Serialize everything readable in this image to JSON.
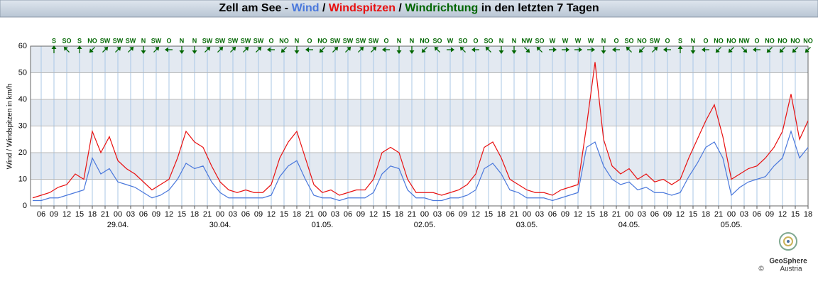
{
  "chart_data": {
    "type": "line",
    "title_prefix": "Zell am See -",
    "title_suffix": "in den letzten 7 Tagen",
    "direction_name": "Windrichtung",
    "direction_color": "#006600",
    "ylabel": "Wind / Windspitzen in km/h",
    "ylim": [
      0,
      60
    ],
    "yticks": [
      0,
      10,
      20,
      30,
      40,
      50,
      60
    ],
    "xlim": [
      3.5,
      186
    ],
    "xticks": [
      {
        "value": 6,
        "label": "06"
      },
      {
        "value": 9,
        "label": "09"
      },
      {
        "value": 12,
        "label": "12"
      },
      {
        "value": 15,
        "label": "15"
      },
      {
        "value": 18,
        "label": "18"
      },
      {
        "value": 21,
        "label": "21"
      },
      {
        "value": 24,
        "label": "00"
      },
      {
        "value": 27,
        "label": "03"
      },
      {
        "value": 30,
        "label": "06"
      },
      {
        "value": 33,
        "label": "09"
      },
      {
        "value": 36,
        "label": "12"
      },
      {
        "value": 39,
        "label": "15"
      },
      {
        "value": 42,
        "label": "18"
      },
      {
        "value": 45,
        "label": "21"
      },
      {
        "value": 48,
        "label": "00"
      },
      {
        "value": 51,
        "label": "03"
      },
      {
        "value": 54,
        "label": "06"
      },
      {
        "value": 57,
        "label": "09"
      },
      {
        "value": 60,
        "label": "12"
      },
      {
        "value": 63,
        "label": "15"
      },
      {
        "value": 66,
        "label": "18"
      },
      {
        "value": 69,
        "label": "21"
      },
      {
        "value": 72,
        "label": "00"
      },
      {
        "value": 75,
        "label": "03"
      },
      {
        "value": 78,
        "label": "06"
      },
      {
        "value": 81,
        "label": "09"
      },
      {
        "value": 84,
        "label": "12"
      },
      {
        "value": 87,
        "label": "15"
      },
      {
        "value": 90,
        "label": "18"
      },
      {
        "value": 93,
        "label": "21"
      },
      {
        "value": 96,
        "label": "00"
      },
      {
        "value": 99,
        "label": "03"
      },
      {
        "value": 102,
        "label": "06"
      },
      {
        "value": 105,
        "label": "09"
      },
      {
        "value": 108,
        "label": "12"
      },
      {
        "value": 111,
        "label": "15"
      },
      {
        "value": 114,
        "label": "18"
      },
      {
        "value": 117,
        "label": "21"
      },
      {
        "value": 120,
        "label": "00"
      },
      {
        "value": 123,
        "label": "03"
      },
      {
        "value": 126,
        "label": "06"
      },
      {
        "value": 129,
        "label": "09"
      },
      {
        "value": 132,
        "label": "12"
      },
      {
        "value": 135,
        "label": "15"
      },
      {
        "value": 138,
        "label": "18"
      },
      {
        "value": 141,
        "label": "21"
      },
      {
        "value": 144,
        "label": "00"
      },
      {
        "value": 147,
        "label": "03"
      },
      {
        "value": 150,
        "label": "06"
      },
      {
        "value": 153,
        "label": "09"
      },
      {
        "value": 156,
        "label": "12"
      },
      {
        "value": 159,
        "label": "15"
      },
      {
        "value": 162,
        "label": "18"
      },
      {
        "value": 165,
        "label": "21"
      },
      {
        "value": 168,
        "label": "00"
      },
      {
        "value": 171,
        "label": "03"
      },
      {
        "value": 174,
        "label": "06"
      },
      {
        "value": 177,
        "label": "09"
      },
      {
        "value": 180,
        "label": "12"
      },
      {
        "value": 183,
        "label": "15"
      },
      {
        "value": 186,
        "label": "18"
      }
    ],
    "day_labels": [
      {
        "value": 24,
        "label": "29.04."
      },
      {
        "value": 48,
        "label": "30.04."
      },
      {
        "value": 72,
        "label": "01.05."
      },
      {
        "value": 96,
        "label": "02.05."
      },
      {
        "value": 120,
        "label": "03.05."
      },
      {
        "value": 144,
        "label": "04.05."
      },
      {
        "value": 168,
        "label": "05.05."
      }
    ],
    "x": [
      4,
      6,
      8,
      10,
      12,
      14,
      16,
      18,
      20,
      22,
      24,
      26,
      28,
      30,
      32,
      34,
      36,
      38,
      40,
      42,
      44,
      46,
      48,
      50,
      52,
      54,
      56,
      58,
      60,
      62,
      64,
      66,
      68,
      70,
      72,
      74,
      76,
      78,
      80,
      82,
      84,
      86,
      88,
      90,
      92,
      94,
      96,
      98,
      100,
      102,
      104,
      106,
      108,
      110,
      112,
      114,
      116,
      118,
      120,
      122,
      124,
      126,
      128,
      130,
      132,
      134,
      136,
      138,
      140,
      142,
      144,
      146,
      148,
      150,
      152,
      154,
      156,
      158,
      160,
      162,
      164,
      166,
      168,
      170,
      172,
      174,
      176,
      178,
      180,
      182,
      184,
      186
    ],
    "series": [
      {
        "name": "Wind",
        "color": "#4a78dc",
        "values": [
          2,
          2,
          3,
          3,
          4,
          5,
          6,
          18,
          12,
          14,
          9,
          8,
          7,
          5,
          3,
          4,
          6,
          10,
          16,
          14,
          15,
          9,
          5,
          3,
          3,
          3,
          3,
          3,
          4,
          11,
          15,
          17,
          10,
          4,
          3,
          3,
          2,
          3,
          3,
          3,
          5,
          12,
          15,
          14,
          6,
          3,
          3,
          2,
          2,
          3,
          3,
          4,
          6,
          14,
          16,
          12,
          6,
          5,
          3,
          3,
          3,
          2,
          3,
          4,
          5,
          22,
          24,
          15,
          10,
          8,
          9,
          6,
          7,
          5,
          5,
          4,
          5,
          11,
          16,
          22,
          24,
          18,
          4,
          7,
          9,
          10,
          11,
          15,
          18,
          28,
          18,
          22
        ]
      },
      {
        "name": "Windspitzen",
        "color": "#e81010",
        "values": [
          3,
          4,
          5,
          7,
          8,
          12,
          10,
          28,
          20,
          26,
          17,
          14,
          12,
          9,
          6,
          8,
          10,
          18,
          28,
          24,
          22,
          15,
          9,
          6,
          5,
          6,
          5,
          5,
          8,
          18,
          24,
          28,
          18,
          8,
          5,
          6,
          4,
          5,
          6,
          6,
          10,
          20,
          22,
          20,
          10,
          5,
          5,
          5,
          4,
          5,
          6,
          8,
          12,
          22,
          24,
          18,
          10,
          8,
          6,
          5,
          5,
          4,
          6,
          7,
          8,
          30,
          54,
          25,
          15,
          12,
          14,
          10,
          12,
          9,
          10,
          8,
          10,
          18,
          25,
          32,
          38,
          26,
          10,
          12,
          14,
          15,
          18,
          22,
          28,
          42,
          25,
          32
        ]
      }
    ],
    "directions": {
      "x": [
        9,
        12,
        15,
        18,
        21,
        24,
        27,
        30,
        33,
        36,
        39,
        42,
        45,
        48,
        51,
        54,
        57,
        60,
        63,
        66,
        69,
        72,
        75,
        78,
        81,
        84,
        87,
        90,
        93,
        96,
        99,
        102,
        105,
        108,
        111,
        114,
        117,
        120,
        123,
        126,
        129,
        132,
        135,
        138,
        141,
        144,
        147,
        150,
        153,
        156,
        159,
        162,
        165,
        168,
        171,
        174,
        177,
        180,
        183,
        186
      ],
      "labels": [
        "S",
        "SO",
        "S",
        "NO",
        "SW",
        "SW",
        "SW",
        "N",
        "SW",
        "O",
        "N",
        "N",
        "SW",
        "SW",
        "SW",
        "SW",
        "SW",
        "O",
        "NO",
        "N",
        "O",
        "NO",
        "SW",
        "SW",
        "SW",
        "SW",
        "O",
        "N",
        "N",
        "NO",
        "SO",
        "W",
        "SO",
        "O",
        "SO",
        "N",
        "N",
        "NW",
        "SO",
        "W",
        "W",
        "W",
        "W",
        "N",
        "O",
        "SO",
        "NO",
        "SW",
        "O",
        "S",
        "N",
        "O",
        "NO",
        "NO",
        "NW",
        "O",
        "NO",
        "NO",
        "NO",
        "NO"
      ]
    },
    "logo": {
      "name": "GeoSphere",
      "sub": "Austria",
      "copyright": "©"
    }
  }
}
